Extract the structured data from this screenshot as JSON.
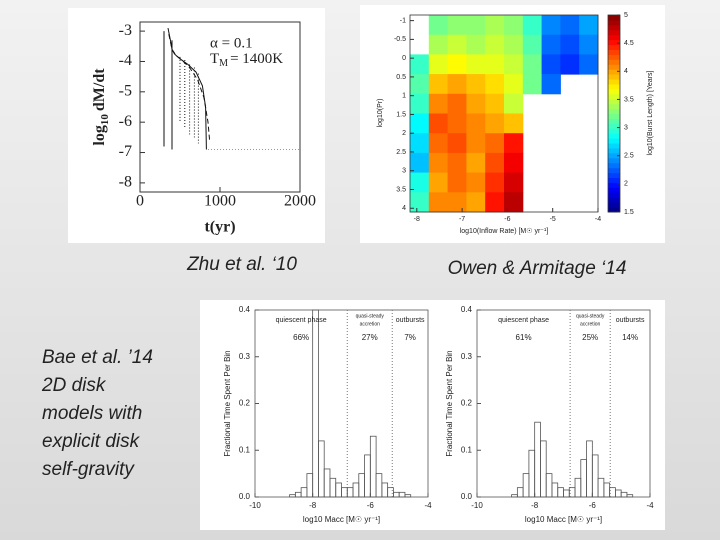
{
  "captions": {
    "zhu": "Zhu et al. ‘10",
    "owen": "Owen & Armitage ‘14",
    "bae": [
      "Bae et al. ’14",
      "2D disk",
      "models with",
      "explicit disk",
      "self-gravity"
    ]
  },
  "zhu": {
    "xlabel": "t(yr)",
    "ylabel": [
      "log",
      "10",
      "dM/dt"
    ],
    "annotation": [
      "α = 0.1",
      "T",
      "M",
      "= 1400K"
    ],
    "xlim": [
      0,
      2000
    ],
    "xticks": [
      0,
      1000,
      2000
    ],
    "ylim": [
      -8.3,
      -2.7
    ],
    "yticks": [
      -3,
      -4,
      -5,
      -6,
      -7,
      -8
    ],
    "series": [
      {
        "dash": "none",
        "x": [
          350,
          380,
          400,
          430,
          470,
          520,
          600,
          700,
          780,
          820,
          830
        ],
        "values": [
          -2.9,
          -3.3,
          -3.6,
          -3.75,
          -3.85,
          -3.95,
          -4.1,
          -4.35,
          -4.8,
          -5.5,
          -6.9
        ]
      },
      {
        "dash": "5 3",
        "x": [
          360,
          400,
          450,
          520,
          620,
          720,
          800,
          850,
          870
        ],
        "values": [
          -3.1,
          -3.6,
          -3.8,
          -3.95,
          -4.2,
          -4.6,
          -5.2,
          -6,
          -6.6
        ]
      },
      {
        "dash": "none",
        "x": [
          300,
          300
        ],
        "values": [
          -3,
          -6.8
        ]
      },
      {
        "dash": "none",
        "x": [
          400,
          400
        ],
        "values": [
          -3.3,
          -6.9
        ]
      },
      {
        "dash": "1 2",
        "x": [
          500,
          500
        ],
        "values": [
          -3.85,
          -6
        ]
      },
      {
        "dash": "1 2",
        "x": [
          560,
          560
        ],
        "values": [
          -3.95,
          -6.2
        ]
      },
      {
        "dash": "1 2",
        "x": [
          620,
          620
        ],
        "values": [
          -4.1,
          -6.4
        ]
      },
      {
        "dash": "1 2",
        "x": [
          680,
          680
        ],
        "values": [
          -4.2,
          -6.5
        ]
      },
      {
        "dash": "1 2",
        "x": [
          730,
          730
        ],
        "values": [
          -4.4,
          -6.7
        ]
      },
      {
        "dash": "1 2",
        "x": [
          850,
          2000
        ],
        "values": [
          -6.9,
          -6.9
        ]
      }
    ]
  },
  "owen": {
    "xlabel": "log10(Inflow Rate) [M☉ yr⁻¹]",
    "ylabel": "log10(Pr)",
    "cblabel": "log10(Burst Length) [Years]",
    "xlim": [
      -8.15,
      -4
    ],
    "xticks": [
      -8,
      -7,
      -6,
      -5,
      -4
    ],
    "ylim": [
      -1.15,
      4.1
    ],
    "yticks": [
      -1,
      -0.5,
      0,
      0.5,
      1,
      1.5,
      2,
      2.5,
      3,
      3.5,
      4
    ],
    "cblim": [
      1.5,
      5
    ],
    "cbticks": [
      5,
      4.5,
      4,
      3.5,
      3,
      2.5,
      2,
      1.5
    ],
    "values": [
      [
        null,
        3.2,
        3.3,
        3.3,
        3.4,
        3.3,
        3.0,
        2.4,
        2.3,
        2.5
      ],
      [
        null,
        3.4,
        3.5,
        3.4,
        3.5,
        3.4,
        3.1,
        2.3,
        2.2,
        2.4
      ],
      [
        3.0,
        3.6,
        3.7,
        3.6,
        3.6,
        3.5,
        3.2,
        2.2,
        2.1,
        2.3
      ],
      [
        3.1,
        3.9,
        4.0,
        3.9,
        3.8,
        3.6,
        3.2,
        2.3,
        null,
        null
      ],
      [
        3.0,
        4.1,
        4.2,
        4.0,
        3.9,
        3.5,
        null,
        null,
        null,
        null
      ],
      [
        2.8,
        4.3,
        4.2,
        4.1,
        4.0,
        3.9,
        null,
        null,
        null,
        null
      ],
      [
        2.7,
        4.2,
        4.3,
        4.1,
        4.2,
        4.5,
        null,
        null,
        null,
        null
      ],
      [
        2.6,
        4.1,
        4.2,
        4.0,
        4.3,
        4.6,
        null,
        null,
        null,
        null
      ],
      [
        2.9,
        4.0,
        4.2,
        4.1,
        4.4,
        4.7,
        null,
        null,
        null,
        null
      ],
      [
        3.0,
        4.1,
        4.1,
        4.0,
        4.5,
        4.8,
        null,
        null,
        null,
        null
      ]
    ]
  },
  "bae": {
    "xlabel": "log10 Macc [M☉ yr⁻¹]",
    "ylabel": "Fractional Time Spent Per Bin",
    "phases": [
      "quiescent phase",
      "quasi-steady",
      "accretion",
      "outbursts"
    ],
    "xlim": [
      -10,
      -4
    ],
    "xticks": [
      -10,
      -8,
      -6,
      -4
    ],
    "ylim": [
      0,
      0.4
    ],
    "yticks": [
      {
        "value": 0,
        "label": "0.0"
      },
      0.1,
      0.2,
      0.3,
      0.4
    ],
    "bins": [
      -8.8,
      -8.6,
      -8.4,
      -8.2,
      -8,
      -7.8,
      -7.6,
      -7.4,
      -7.2,
      -7,
      -6.8,
      -6.6,
      -6.4,
      -6.2,
      -6,
      -5.8,
      -5.6,
      -5.4,
      -5.2,
      -5,
      -4.8,
      -4.6
    ],
    "panels": [
      {
        "percents": [
          "66%",
          "27%",
          "7%"
        ],
        "boundaries": [
          -6.8,
          -5.24
        ],
        "counts": [
          0.005,
          0.01,
          0.02,
          0.05,
          0.4,
          0.12,
          0.06,
          0.04,
          0.03,
          0.02,
          0.02,
          0.03,
          0.05,
          0.09,
          0.13,
          0.05,
          0.03,
          0.02,
          0.01,
          0.01,
          0.005
        ]
      },
      {
        "percents": [
          "61%",
          "25%",
          "14%"
        ],
        "boundaries": [
          -6.77,
          -5.38
        ],
        "counts": [
          0.005,
          0.02,
          0.05,
          0.1,
          0.16,
          0.12,
          0.05,
          0.03,
          0.02,
          0.015,
          0.02,
          0.04,
          0.08,
          0.12,
          0.09,
          0.04,
          0.03,
          0.02,
          0.015,
          0.01,
          0.005
        ]
      }
    ]
  }
}
